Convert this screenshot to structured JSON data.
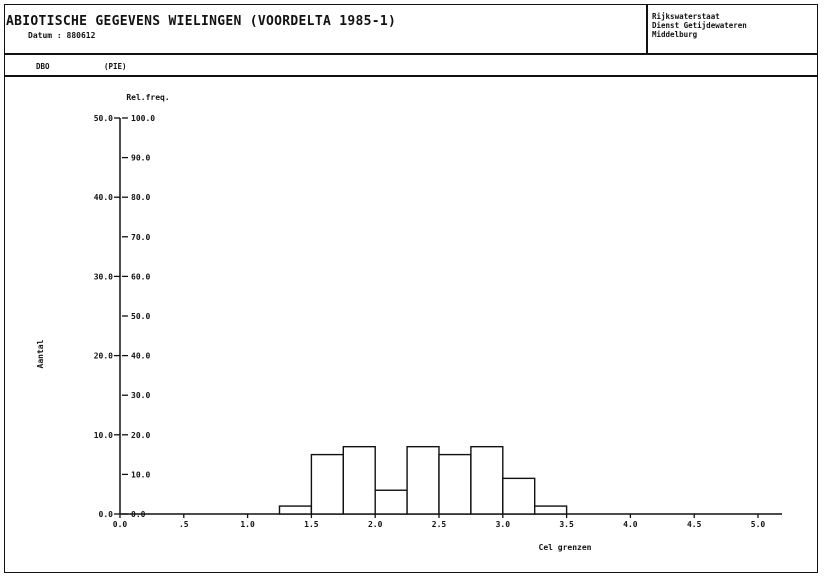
{
  "header": {
    "title": "ABIOTISCHE GEGEVENS WIELINGEN (VOORDELTA 1985-1)",
    "date": "Datum : 880612",
    "org_lines": [
      "Rijkswaterstaat",
      "Dienst Getijdewateren",
      "Middelburg"
    ],
    "label_left": "DBO",
    "label_unit": "(PIE)"
  },
  "chart_data": {
    "type": "bar",
    "ylabel_left": "Aantal",
    "ylabel_right": "Rel.freq.",
    "xlabel": "Cel grenzen",
    "x_ticks": [
      "0.0",
      ".5",
      "1.0",
      "1.5",
      "2.0",
      "2.5",
      "3.0",
      "3.5",
      "4.0",
      "4.5",
      "5.0"
    ],
    "x_tick_values": [
      0.0,
      0.5,
      1.0,
      1.5,
      2.0,
      2.5,
      3.0,
      3.5,
      4.0,
      4.5,
      5.0
    ],
    "xlim": [
      0.0,
      5.0
    ],
    "y_left_ticks": [
      "0.0",
      "10.0",
      "20.0",
      "30.0",
      "40.0",
      "50.0"
    ],
    "y_left_tick_values": [
      0,
      10,
      20,
      30,
      40,
      50
    ],
    "y_left_lim": [
      0,
      50
    ],
    "y_right_ticks": [
      "0.0",
      "10.0",
      "20.0",
      "30.0",
      "40.0",
      "50.0",
      "60.0",
      "70.0",
      "80.0",
      "90.0",
      "100.0"
    ],
    "y_right_tick_values": [
      0,
      10,
      20,
      30,
      40,
      50,
      60,
      70,
      80,
      90,
      100
    ],
    "y_right_lim": [
      0,
      100
    ],
    "bin_width": 0.25,
    "bins": [
      {
        "start": 1.25,
        "end": 1.5,
        "value": 1
      },
      {
        "start": 1.5,
        "end": 1.75,
        "value": 7.5
      },
      {
        "start": 1.75,
        "end": 2.0,
        "value": 8.5
      },
      {
        "start": 2.0,
        "end": 2.25,
        "value": 3.0
      },
      {
        "start": 2.25,
        "end": 2.5,
        "value": 8.5
      },
      {
        "start": 2.5,
        "end": 2.75,
        "value": 7.5
      },
      {
        "start": 2.75,
        "end": 3.0,
        "value": 8.5
      },
      {
        "start": 3.0,
        "end": 3.25,
        "value": 4.5
      },
      {
        "start": 3.25,
        "end": 3.5,
        "value": 1
      }
    ]
  }
}
